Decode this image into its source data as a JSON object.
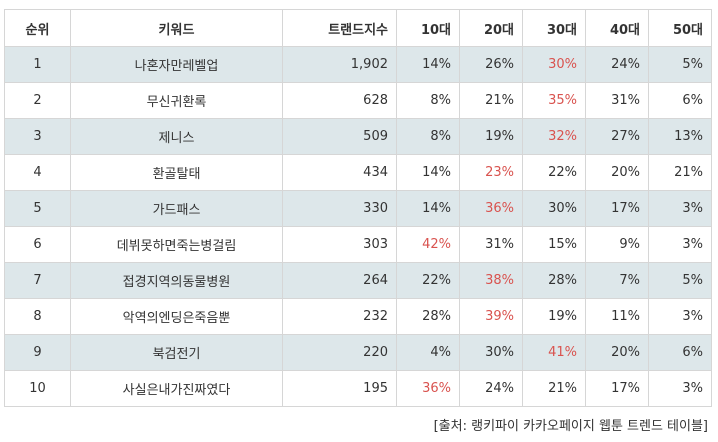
{
  "table": {
    "headers": [
      "순위",
      "키워드",
      "트랜드지수",
      "10대",
      "20대",
      "30대",
      "40대",
      "50대"
    ],
    "rows": [
      {
        "rank": "1",
        "keyword": "나혼자만레벨업",
        "index": "1,902",
        "p10": "14%",
        "p20": "26%",
        "p30": "30%",
        "p40": "24%",
        "p50": "5%",
        "highlight": "p30"
      },
      {
        "rank": "2",
        "keyword": "무신귀환록",
        "index": "628",
        "p10": "8%",
        "p20": "21%",
        "p30": "35%",
        "p40": "31%",
        "p50": "6%",
        "highlight": "p30"
      },
      {
        "rank": "3",
        "keyword": "제니스",
        "index": "509",
        "p10": "8%",
        "p20": "19%",
        "p30": "32%",
        "p40": "27%",
        "p50": "13%",
        "highlight": "p30"
      },
      {
        "rank": "4",
        "keyword": "환골탈태",
        "index": "434",
        "p10": "14%",
        "p20": "23%",
        "p30": "22%",
        "p40": "20%",
        "p50": "21%",
        "highlight": "p20"
      },
      {
        "rank": "5",
        "keyword": "가드패스",
        "index": "330",
        "p10": "14%",
        "p20": "36%",
        "p30": "30%",
        "p40": "17%",
        "p50": "3%",
        "highlight": "p20"
      },
      {
        "rank": "6",
        "keyword": "데뷔못하면죽는병걸림",
        "index": "303",
        "p10": "42%",
        "p20": "31%",
        "p30": "15%",
        "p40": "9%",
        "p50": "3%",
        "highlight": "p10"
      },
      {
        "rank": "7",
        "keyword": "접경지역의동물병원",
        "index": "264",
        "p10": "22%",
        "p20": "38%",
        "p30": "28%",
        "p40": "7%",
        "p50": "5%",
        "highlight": "p20"
      },
      {
        "rank": "8",
        "keyword": "악역의엔딩은죽음뿐",
        "index": "232",
        "p10": "28%",
        "p20": "39%",
        "p30": "19%",
        "p40": "11%",
        "p50": "3%",
        "highlight": "p20"
      },
      {
        "rank": "9",
        "keyword": "북검전기",
        "index": "220",
        "p10": "4%",
        "p20": "30%",
        "p30": "41%",
        "p40": "20%",
        "p50": "6%",
        "highlight": "p30"
      },
      {
        "rank": "10",
        "keyword": "사실은내가진짜였다",
        "index": "195",
        "p10": "36%",
        "p20": "24%",
        "p30": "21%",
        "p40": "17%",
        "p50": "3%",
        "highlight": "p10"
      }
    ]
  },
  "source": "[출처: 랭키파이 카카오페이지 웹툰 트렌드 테이블]",
  "colors": {
    "highlight": "#d9534f",
    "shade": "#dde7ea",
    "border": "#d6d6d6"
  }
}
